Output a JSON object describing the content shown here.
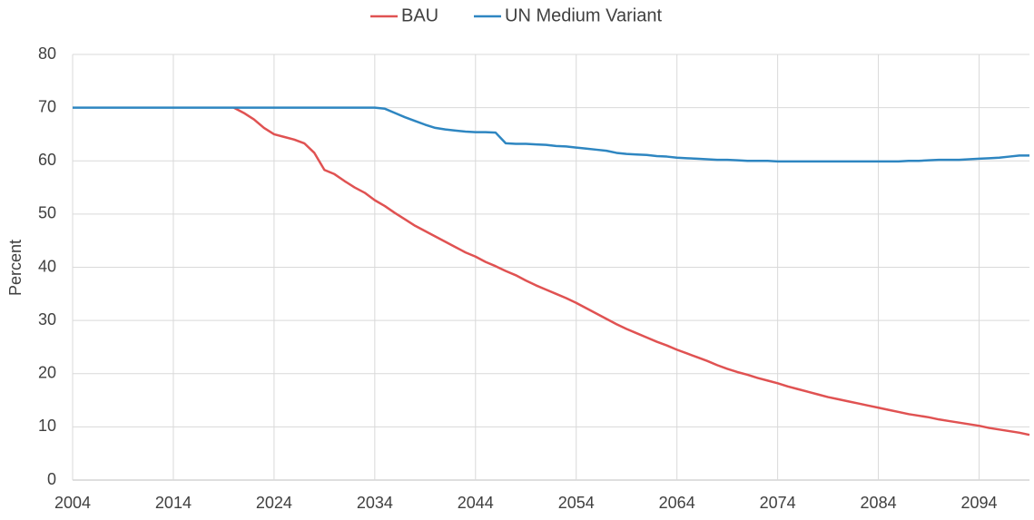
{
  "chart_data": {
    "type": "line",
    "y_label": "Percent",
    "x": [
      2004,
      2005,
      2006,
      2007,
      2008,
      2009,
      2010,
      2011,
      2012,
      2013,
      2014,
      2015,
      2016,
      2017,
      2018,
      2019,
      2020,
      2021,
      2022,
      2023,
      2024,
      2025,
      2026,
      2027,
      2028,
      2029,
      2030,
      2031,
      2032,
      2033,
      2034,
      2035,
      2036,
      2037,
      2038,
      2039,
      2040,
      2041,
      2042,
      2043,
      2044,
      2045,
      2046,
      2047,
      2048,
      2049,
      2050,
      2051,
      2052,
      2053,
      2054,
      2055,
      2056,
      2057,
      2058,
      2059,
      2060,
      2061,
      2062,
      2063,
      2064,
      2065,
      2066,
      2067,
      2068,
      2069,
      2070,
      2071,
      2072,
      2073,
      2074,
      2075,
      2076,
      2077,
      2078,
      2079,
      2080,
      2081,
      2082,
      2083,
      2084,
      2085,
      2086,
      2087,
      2088,
      2089,
      2090,
      2091,
      2092,
      2093,
      2094,
      2095,
      2096,
      2097,
      2098,
      2099
    ],
    "series": [
      {
        "name": "BAU",
        "color": "#e05252",
        "values": [
          null,
          null,
          null,
          null,
          null,
          null,
          null,
          null,
          null,
          null,
          null,
          null,
          null,
          null,
          null,
          null,
          70,
          69,
          67.8,
          66.2,
          65,
          64.5,
          64,
          63.3,
          61.5,
          58.3,
          57.5,
          56.2,
          55,
          54,
          52.6,
          51.5,
          50.2,
          49,
          47.8,
          46.8,
          45.8,
          44.8,
          43.8,
          42.8,
          42,
          41,
          40.2,
          39.3,
          38.5,
          37.5,
          36.6,
          35.8,
          35,
          34.2,
          33.3,
          32.3,
          31.3,
          30.3,
          29.3,
          28.4,
          27.6,
          26.8,
          26,
          25.3,
          24.5,
          23.8,
          23.1,
          22.4,
          21.6,
          20.9,
          20.3,
          19.8,
          19.2,
          18.7,
          18.2,
          17.6,
          17.1,
          16.6,
          16.1,
          15.6,
          15.2,
          14.8,
          14.4,
          14,
          13.6,
          13.2,
          12.8,
          12.4,
          12.1,
          11.8,
          11.4,
          11.1,
          10.8,
          10.5,
          10.2,
          9.8,
          9.5,
          9.2,
          8.9,
          8.5
        ]
      },
      {
        "name": "UN Medium Variant",
        "color": "#2e86c1",
        "values": [
          70,
          70,
          70,
          70,
          70,
          70,
          70,
          70,
          70,
          70,
          70,
          70,
          70,
          70,
          70,
          70,
          70,
          70,
          70,
          70,
          70,
          70,
          70,
          70,
          70,
          70,
          70,
          70,
          70,
          70,
          70,
          69.8,
          69,
          68.2,
          67.5,
          66.8,
          66.2,
          65.9,
          65.7,
          65.5,
          65.4,
          65.4,
          65.3,
          63.3,
          63.2,
          63.2,
          63.1,
          63,
          62.8,
          62.7,
          62.5,
          62.3,
          62.1,
          61.9,
          61.5,
          61.3,
          61.2,
          61.1,
          60.9,
          60.8,
          60.6,
          60.5,
          60.4,
          60.3,
          60.2,
          60.2,
          60.1,
          60,
          60,
          60,
          59.9,
          59.9,
          59.9,
          59.9,
          59.9,
          59.9,
          59.9,
          59.9,
          59.9,
          59.9,
          59.9,
          59.9,
          59.9,
          60,
          60,
          60.1,
          60.2,
          60.2,
          60.2,
          60.3,
          60.4,
          60.5,
          60.6,
          60.8,
          61,
          61
        ]
      }
    ],
    "xlim": [
      2004,
      2099
    ],
    "xticks": [
      2004,
      2014,
      2024,
      2034,
      2044,
      2054,
      2064,
      2074,
      2084,
      2094
    ],
    "ylim": [
      0,
      80
    ],
    "yticks": [
      0,
      10,
      20,
      30,
      40,
      50,
      60,
      70,
      80
    ],
    "grid": true,
    "legend": "top"
  }
}
